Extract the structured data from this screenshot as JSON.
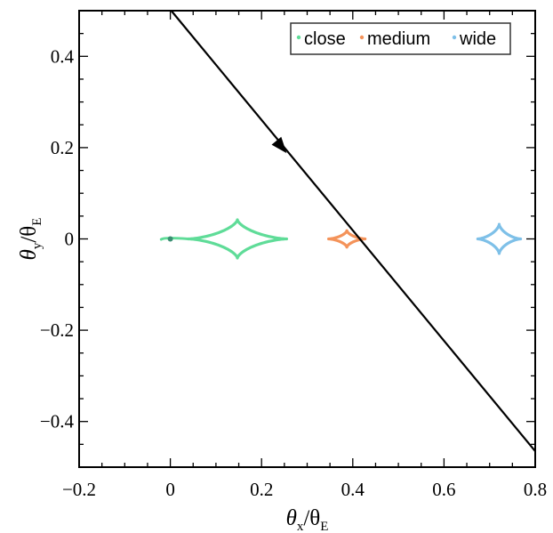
{
  "chart_data": {
    "type": "line",
    "title": "",
    "xlabel": {
      "main": "θ",
      "sub1": "x",
      "sep": "/θ",
      "sub2": "E"
    },
    "ylabel": {
      "main": "θ",
      "sub1": "y",
      "sep": "/θ",
      "sub2": "E"
    },
    "xlim": [
      -0.2,
      0.8
    ],
    "ylim": [
      -0.5,
      0.5
    ],
    "xticks": [
      -0.2,
      0,
      0.2,
      0.4,
      0.6,
      0.8
    ],
    "xtick_labels": [
      "−0.2",
      "0",
      "0.2",
      "0.4",
      "0.6",
      "0.8"
    ],
    "yticks": [
      -0.4,
      -0.2,
      0,
      0.2,
      0.4
    ],
    "ytick_labels": [
      "−0.4",
      "−0.2",
      "0",
      "0.2",
      "0.4"
    ],
    "grid": false,
    "legend_position": "top-right",
    "series": [
      {
        "name": "close",
        "color": "#5fdc98",
        "shape": "astroid",
        "center": [
          0.147,
          0
        ],
        "half_width": 0.108,
        "half_height": 0.042,
        "extra": {
          "pinch_x": -0.02,
          "pinch_half_height": 0.01
        }
      },
      {
        "name": "medium",
        "color": "#f4935a",
        "shape": "astroid",
        "center": [
          0.387,
          0
        ],
        "half_width": 0.04,
        "half_height": 0.018
      },
      {
        "name": "wide",
        "color": "#7ec0e8",
        "shape": "astroid",
        "center": [
          0.721,
          0
        ],
        "half_width": 0.047,
        "half_height": 0.032
      }
    ],
    "source_trajectory": {
      "color": "#000000",
      "points": [
        [
          0.002,
          0.5
        ],
        [
          0.8,
          -0.465
        ]
      ],
      "arrow_at": [
        0.245,
        0.2
      ],
      "direction": "down-right"
    }
  }
}
